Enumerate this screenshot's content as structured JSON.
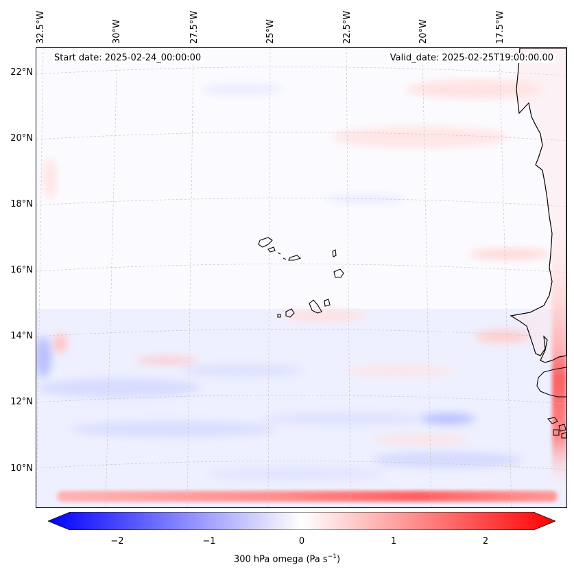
{
  "header": {
    "start_date": "Start date: 2025-02-24_00:00:00",
    "valid_date": "Valid_date: 2025-02-25T19:00:00.00"
  },
  "map": {
    "variable": "300 hPa omega",
    "units_base": "Pa s",
    "units_exp": "−1",
    "lat_labels": [
      "22°N",
      "20°N",
      "18°N",
      "16°N",
      "14°N",
      "12°N",
      "10°N"
    ],
    "lon_labels": [
      "32.5°W",
      "30°W",
      "27.5°W",
      "25°W",
      "22.5°W",
      "20°W",
      "17.5°W"
    ],
    "colors": {
      "negative": "#0000ff",
      "zero": "#ffffff",
      "positive": "#ff0000",
      "coast": "#000000",
      "grid": "#bbbbbb"
    },
    "colorbar_range": [
      -2.5,
      2.5
    ],
    "colorbar_ticks": [
      "−2",
      "−1",
      "0",
      "1",
      "2"
    ]
  }
}
